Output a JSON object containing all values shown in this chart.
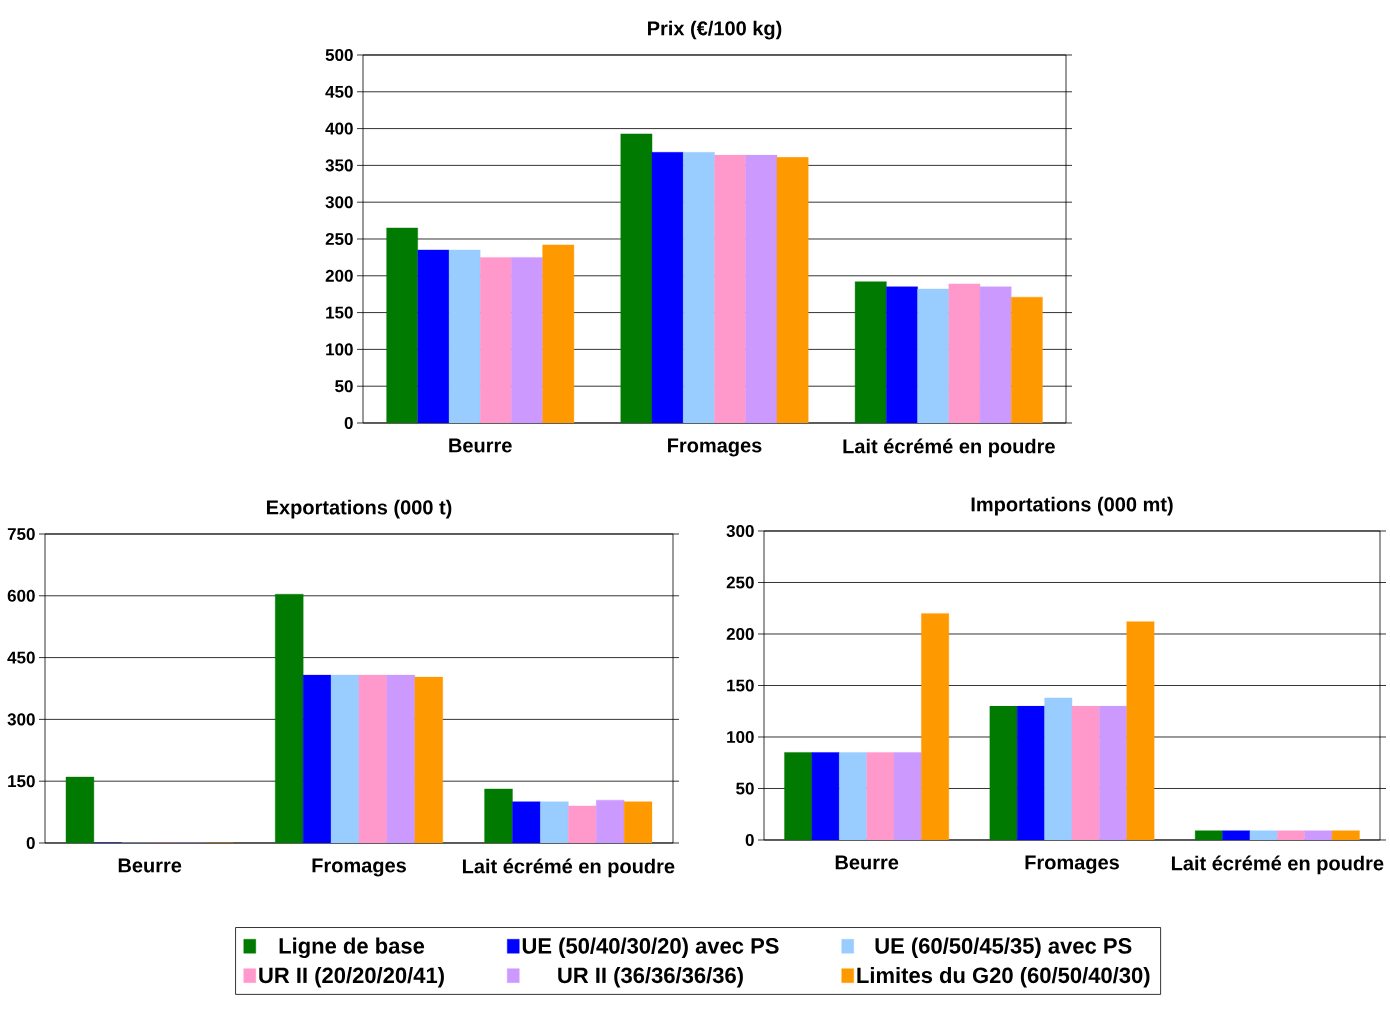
{
  "chart_data": [
    {
      "type": "bar",
      "title": "Prix (€/100 kg)",
      "categories": [
        "Beurre",
        "Fromages",
        "Lait écrémé en poudre"
      ],
      "ylim": [
        0,
        500
      ],
      "yticks": [
        0,
        50,
        100,
        150,
        200,
        250,
        300,
        350,
        400,
        450,
        500
      ],
      "grid": "y",
      "series": [
        {
          "color": "#007a00",
          "values": [
            265,
            393,
            192
          ]
        },
        {
          "color": "#0000ff",
          "values": [
            235,
            368,
            185
          ]
        },
        {
          "color": "#99ccff",
          "values": [
            235,
            368,
            182
          ]
        },
        {
          "color": "#ff99cc",
          "values": [
            225,
            364,
            189
          ]
        },
        {
          "color": "#cc99ff",
          "values": [
            225,
            364,
            185
          ]
        },
        {
          "color": "#ff9900",
          "values": [
            242,
            361,
            171
          ]
        }
      ]
    },
    {
      "type": "bar",
      "title": "Exportations (000 t)",
      "categories": [
        "Beurre",
        "Fromages",
        "Lait écrémé en poudre"
      ],
      "ylim": [
        0,
        750
      ],
      "yticks": [
        0,
        150,
        300,
        450,
        600,
        750
      ],
      "grid": "y",
      "series": [
        {
          "color": "#007a00",
          "values": [
            160,
            604,
            131
          ]
        },
        {
          "color": "#0000ff",
          "values": [
            0,
            408,
            100
          ]
        },
        {
          "color": "#99ccff",
          "values": [
            0,
            408,
            100
          ]
        },
        {
          "color": "#ff99cc",
          "values": [
            0,
            408,
            90
          ]
        },
        {
          "color": "#cc99ff",
          "values": [
            0,
            408,
            104
          ]
        },
        {
          "color": "#ff9900",
          "values": [
            0,
            403,
            100
          ]
        }
      ]
    },
    {
      "type": "bar",
      "title": "Importations (000 mt)",
      "categories": [
        "Beurre",
        "Fromages",
        "Lait écrémé en poudre"
      ],
      "ylim": [
        0,
        300
      ],
      "yticks": [
        0,
        50,
        100,
        150,
        200,
        250,
        300
      ],
      "grid": "y",
      "legend": "bottom",
      "series": [
        {
          "name": "Ligne de base",
          "color": "#007a00",
          "values": [
            85,
            130,
            9
          ]
        },
        {
          "name": "UE (50/40/30/20) avec PS",
          "color": "#0000ff",
          "values": [
            85,
            130,
            9
          ]
        },
        {
          "name": "UE (60/50/45/35) avec PS",
          "color": "#99ccff",
          "values": [
            85,
            138,
            9
          ]
        },
        {
          "name": "UR II (20/20/20/41)",
          "color": "#ff99cc",
          "values": [
            85,
            130,
            9
          ]
        },
        {
          "name": "UR II (36/36/36/36)",
          "color": "#cc99ff",
          "values": [
            85,
            130,
            9
          ]
        },
        {
          "name": "Limites du G20 (60/50/40/30)",
          "color": "#ff9900",
          "values": [
            220,
            212,
            9
          ]
        }
      ]
    }
  ]
}
